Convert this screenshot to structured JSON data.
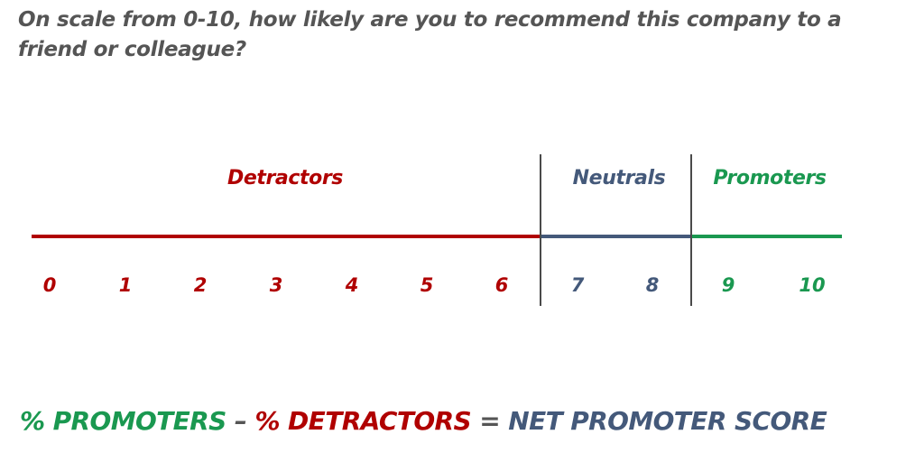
{
  "question": "On scale from 0-10, how likely are you to recommend this company to a friend or colleague?",
  "colors": {
    "detractors": "#b00000",
    "neutrals": "#44597a",
    "promoters": "#1a9850",
    "text": "#555555"
  },
  "groups": {
    "detractors": "Detractors",
    "neutrals": "Neutrals",
    "promoters": "Promoters"
  },
  "scale": [
    {
      "value": "0",
      "group": "detractors"
    },
    {
      "value": "1",
      "group": "detractors"
    },
    {
      "value": "2",
      "group": "detractors"
    },
    {
      "value": "3",
      "group": "detractors"
    },
    {
      "value": "4",
      "group": "detractors"
    },
    {
      "value": "5",
      "group": "detractors"
    },
    {
      "value": "6",
      "group": "detractors"
    },
    {
      "value": "7",
      "group": "neutrals"
    },
    {
      "value": "8",
      "group": "neutrals"
    },
    {
      "value": "9",
      "group": "promoters"
    },
    {
      "value": "10",
      "group": "promoters"
    }
  ],
  "formula": {
    "promoters": "% PROMOTERS",
    "minus": "–",
    "detractors": "% DETRACTORS",
    "equals": "=",
    "result": "NET PROMOTER SCORE"
  }
}
